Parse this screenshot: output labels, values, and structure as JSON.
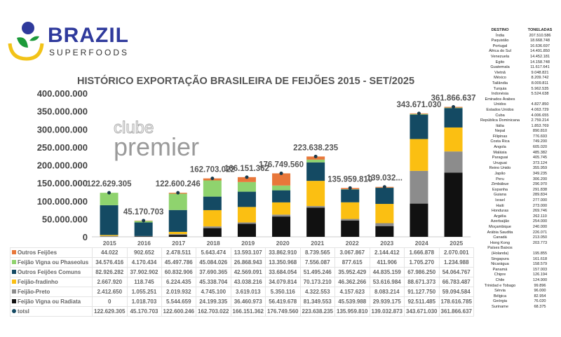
{
  "logo": {
    "brand": "BRAZIL",
    "sub": "SUPERFOODS"
  },
  "watermark": {
    "line1": "clube",
    "line2": "premier"
  },
  "chart_data": {
    "type": "bar",
    "stacked": true,
    "title": "HISTÓRICO EXPORTAÇÃO BRASILEIRA DE FEIJÕES 2015 - SET/2025",
    "categories": [
      "2015",
      "2016",
      "2017",
      "2018",
      "2019",
      "2020",
      "2021",
      "2022",
      "2023",
      "2024",
      "2025"
    ],
    "ylim": [
      0,
      400000000
    ],
    "yticks": [
      "0",
      "50.000.000",
      "100.000.000",
      "150.000.000",
      "200.000.000",
      "250.000.000",
      "300.000.000",
      "350.000.000",
      "400.000.000"
    ],
    "series": [
      {
        "name": "Feijão Vigna ou Radiata",
        "color": "#111111",
        "values": [
          0,
          1018703,
          5544659,
          24199335,
          36460973,
          56419678,
          81349553,
          45539988,
          29939175,
          92511485,
          178616785
        ],
        "labels": [
          "0",
          "1.018.703",
          "5.544.659",
          "24.199.335",
          "36.460.973",
          "56.419.678",
          "81.349.553",
          "45.539.988",
          "29.939.175",
          "92.511.485",
          "178.616.785"
        ]
      },
      {
        "name": "Feijão-Preto",
        "color": "#8c8c8c",
        "values": [
          2412650,
          1055251,
          2019932,
          4745100,
          3619013,
          5350116,
          4322553,
          4157623,
          8083214,
          91127750,
          59094584
        ],
        "labels": [
          "2.412.650",
          "1.055.251",
          "2.019.932",
          "4.745.100",
          "3.619.013",
          "5.350.116",
          "4.322.553",
          "4.157.623",
          "8.083.214",
          "91.127.750",
          "59.094.584"
        ]
      },
      {
        "name": "Feijão-fradinho",
        "color": "#fbbf12",
        "values": [
          2667920,
          118745,
          6224435,
          45338704,
          43038216,
          34079814,
          70173210,
          46362266,
          53616984,
          88671373,
          66783487
        ],
        "labels": [
          "2.667.920",
          "118.745",
          "6.224.435",
          "45.338.704",
          "43.038.216",
          "34.079.814",
          "70.173.210",
          "46.362.266",
          "53.616.984",
          "88.671.373",
          "66.783.487"
        ]
      },
      {
        "name": "Outros Feijões Comuns",
        "color": "#144a63",
        "values": [
          82926282,
          37902902,
          60832906,
          37690365,
          42569091,
          33684054,
          51495246,
          35952429,
          44835159,
          67986250,
          54064767
        ],
        "labels": [
          "82.926.282",
          "37.902.902",
          "60.832.906",
          "37.690.365",
          "42.569.091",
          "33.684.054",
          "51.495.246",
          "35.952.429",
          "44.835.159",
          "67.986.250",
          "54.064.767"
        ]
      },
      {
        "name": "Feijão Vigna ou Phaseolus",
        "color": "#8fd36e",
        "values": [
          34576416,
          4170434,
          45497786,
          45084026,
          26868943,
          13350968,
          7556087,
          877615,
          411906,
          1705270,
          1234988
        ],
        "labels": [
          "34.576.416",
          "4.170.434",
          "45.497.786",
          "45.084.026",
          "26.868.943",
          "13.350.968",
          "7.556.087",
          "877.615",
          "411.906",
          "1.705.270",
          "1.234.988"
        ]
      },
      {
        "name": "Outros Feijões",
        "color": "#e8773a",
        "values": [
          44022,
          902652,
          2478511,
          5643474,
          13593107,
          33862910,
          8739565,
          3067867,
          2144412,
          1666878,
          2070001
        ],
        "labels": [
          "44.022",
          "902.652",
          "2.478.511",
          "5.643.474",
          "13.593.107",
          "33.862.910",
          "8.739.565",
          "3.067.867",
          "2.144.412",
          "1.666.878",
          "2.070.001"
        ]
      }
    ],
    "totals": {
      "name": "totsl",
      "color": "#144a63",
      "values": [
        122629305,
        45170703,
        122600246,
        162703022,
        166151362,
        176749560,
        223638235,
        135959810,
        139032873,
        343671030,
        361866637
      ],
      "labels": [
        "122.629.305",
        "45.170.703",
        "122.600.246",
        "162.703.022",
        "166.151.362",
        "176.749.560",
        "223.638.235",
        "135.959.810",
        "139.032.873",
        "343.671.030",
        "361.866.637"
      ]
    },
    "bar_labels": [
      "122.629.305",
      "45.170.703",
      "122.600.246",
      "162.703.022",
      "166.151.362",
      "176.749.560",
      "223.638.235",
      "135.959.810",
      "139.032...",
      "343.671.030",
      "361.866.637"
    ],
    "table_order": [
      5,
      4,
      3,
      2,
      1,
      0
    ]
  },
  "destinations": {
    "headers": [
      "DESTINO",
      "TONELADAS"
    ],
    "rows": [
      [
        "Índia",
        "207.510.586"
      ],
      [
        "Paquistão",
        "18.668.748"
      ],
      [
        "Portugal",
        "16.636.697"
      ],
      [
        "África do Sul",
        "14.491.850"
      ],
      [
        "Venezuela",
        "14.452.181"
      ],
      [
        "Egito",
        "14.158.748"
      ],
      [
        "Guatemala",
        "11.617.641"
      ],
      [
        "Vietnã",
        "9.048.821"
      ],
      [
        "México",
        "8.209.742"
      ],
      [
        "Tailândia",
        "8.009.811"
      ],
      [
        "Turquia",
        "5.962.535"
      ],
      [
        "Indonésia",
        "5.524.638"
      ],
      [
        "Emirados Árabes Unidos",
        "4.827.850"
      ],
      [
        "Estados Unidos",
        "4.063.729"
      ],
      [
        "Cuba",
        "4.006.655"
      ],
      [
        "República Dominicana",
        "2.759.214"
      ],
      [
        "Itália",
        "1.853.769"
      ],
      [
        "Nepal",
        "890.810"
      ],
      [
        "Filipinas",
        "776.693"
      ],
      [
        "Costa Rica",
        "749.200"
      ],
      [
        "Angola",
        "605.020"
      ],
      [
        "Malásia",
        "485.382"
      ],
      [
        "Paraguai",
        "405.745"
      ],
      [
        "Uruguai",
        "373.124"
      ],
      [
        "Reino Unido",
        "355.959"
      ],
      [
        "Japão",
        "349.235"
      ],
      [
        "Peru",
        "306.200"
      ],
      [
        "Zimbábue",
        "296.970"
      ],
      [
        "Espanha",
        "291.838"
      ],
      [
        "Guiana",
        "289.834"
      ],
      [
        "Israel",
        "277.000"
      ],
      [
        "Haiti",
        "273.000"
      ],
      [
        "Honduras",
        "269.746"
      ],
      [
        "Argélia",
        "262.110"
      ],
      [
        "Azerbaijão",
        "254.000"
      ],
      [
        "Moçambique",
        "240.000"
      ],
      [
        "Arábia Saudita",
        "226.071"
      ],
      [
        "Canadá",
        "213.050"
      ],
      [
        "Hong Kong",
        "203.773"
      ],
      [
        "Países Baixos (Holanda)",
        "195.855"
      ],
      [
        "Singapura",
        "161.618"
      ],
      [
        "Nicarágua",
        "158.579"
      ],
      [
        "Panamá",
        "157.003"
      ],
      [
        "Chipre",
        "126.194"
      ],
      [
        "Chile",
        "124.900"
      ],
      [
        "Trinidad e Tobago",
        "99.896"
      ],
      [
        "Sérvia",
        "96.000"
      ],
      [
        "Bélgica",
        "82.954"
      ],
      [
        "Geórgia",
        "76.020"
      ],
      [
        "Suriname",
        "68.375"
      ]
    ]
  }
}
